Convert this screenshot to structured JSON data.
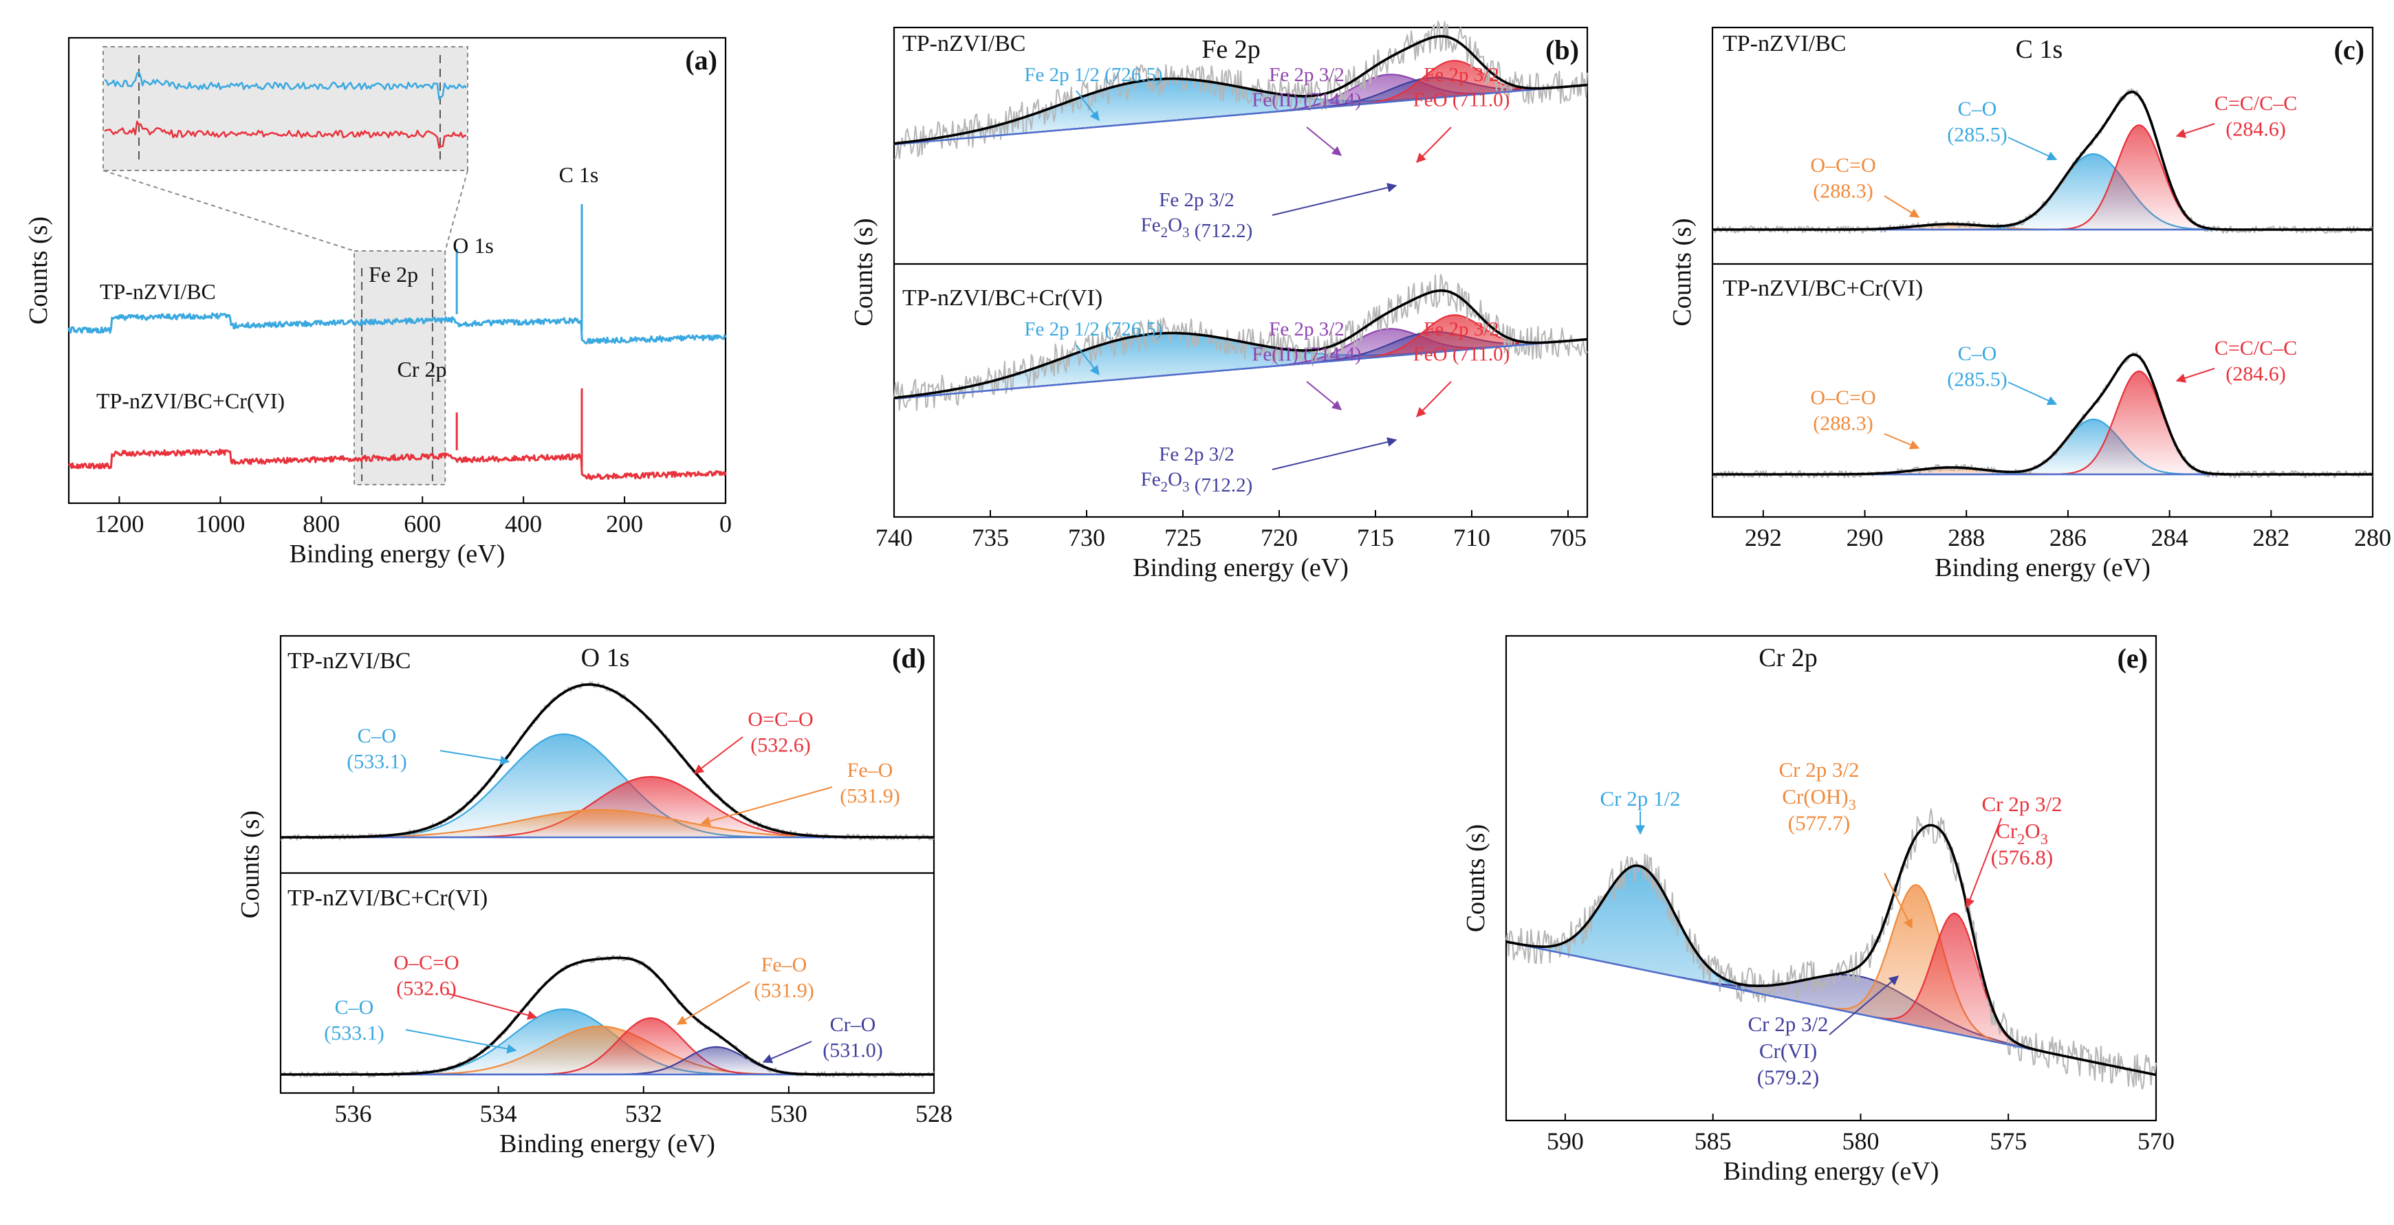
{
  "figure_colors": {
    "blue": "#3aa8e0",
    "red": "#e8323c",
    "orange": "#f08a3c",
    "purple": "#8e44ad",
    "navy": "#3f3f9c",
    "black": "#000000",
    "raw": "#b5b5b5",
    "inset_bg": "#e8e8e8"
  },
  "chart_data": [
    {
      "id": "a",
      "panel_label": "(a)",
      "type": "line",
      "xlabel": "Binding energy (eV)",
      "ylabel": "Counts (s)",
      "xlim": [
        1300,
        0
      ],
      "xticks": [
        1200,
        1000,
        800,
        600,
        400,
        200,
        0
      ],
      "xtick_labels": [
        "1200",
        "1000",
        "800",
        "600",
        "400",
        "200",
        "0"
      ],
      "series": [
        {
          "name": "TP-nZVI/BC",
          "color": "blue",
          "offset": 0.62
        },
        {
          "name": "TP-nZVI/BC+Cr(VI)",
          "color": "red",
          "offset": 0.28
        }
      ],
      "peak_labels": {
        "fe2p": "Fe 2p",
        "cr2p": "Cr 2p",
        "o1s": "O 1s",
        "c1s": "C 1s"
      }
    },
    {
      "id": "b",
      "panel_label": "(b)",
      "type": "line",
      "title": "Fe 2p",
      "xlabel": "Binding energy (eV)",
      "ylabel": "Counts (s)",
      "xlim": [
        740,
        704
      ],
      "xticks": [
        740,
        735,
        730,
        725,
        720,
        715,
        710,
        705
      ],
      "xtick_labels": [
        "740",
        "735",
        "730",
        "725",
        "720",
        "715",
        "710",
        "705"
      ],
      "series": [
        {
          "name": "TP-nZVI/BC",
          "components": [
            {
              "label_lines": [
                "Fe 2p 1/2 (726.5)"
              ],
              "center": 726.5,
              "color": "blue"
            },
            {
              "label_lines": [
                "Fe 2p 3/2",
                "Fe(II) (714.4)"
              ],
              "center": 714.4,
              "color": "purple"
            },
            {
              "label_lines": [
                "Fe 2p 3/2",
                "FeO (711.0)"
              ],
              "center": 711.0,
              "color": "red"
            },
            {
              "label_lines": [
                "Fe 2p 3/2",
                "Fe2O3 (712.2)"
              ],
              "center": 712.2,
              "color": "navy"
            }
          ]
        },
        {
          "name": "TP-nZVI/BC+Cr(VI)",
          "components": [
            {
              "label_lines": [
                "Fe 2p 1/2 (726.5)"
              ],
              "center": 726.5,
              "color": "blue"
            },
            {
              "label_lines": [
                "Fe 2p 3/2",
                "Fe(II) (714.4)"
              ],
              "center": 714.4,
              "color": "purple"
            },
            {
              "label_lines": [
                "Fe 2p 3/2",
                "FeO (711.0)"
              ],
              "center": 711.0,
              "color": "red"
            },
            {
              "label_lines": [
                "Fe 2p 3/2",
                "Fe2O3 (712.2)"
              ],
              "center": 712.2,
              "color": "navy"
            }
          ]
        }
      ]
    },
    {
      "id": "c",
      "panel_label": "(c)",
      "type": "line",
      "title": "C 1s",
      "xlabel": "Binding energy (eV)",
      "ylabel": "Counts (s)",
      "xlim": [
        293,
        280
      ],
      "xticks": [
        292,
        290,
        288,
        286,
        284,
        282,
        280
      ],
      "xtick_labels": [
        "292",
        "290",
        "288",
        "286",
        "284",
        "282",
        "280"
      ],
      "series": [
        {
          "name": "TP-nZVI/BC",
          "components": [
            {
              "label_lines": [
                "O–C=O",
                "(288.3)"
              ],
              "center": 288.3,
              "color": "orange"
            },
            {
              "label_lines": [
                "C–O",
                "(285.5)"
              ],
              "center": 285.5,
              "color": "blue"
            },
            {
              "label_lines": [
                "C=C/C–C",
                "(284.6)"
              ],
              "center": 284.6,
              "color": "red"
            }
          ]
        },
        {
          "name": "TP-nZVI/BC+Cr(VI)",
          "components": [
            {
              "label_lines": [
                "O–C=O",
                "(288.3)"
              ],
              "center": 288.3,
              "color": "orange"
            },
            {
              "label_lines": [
                "C–O",
                "(285.5)"
              ],
              "center": 285.5,
              "color": "blue"
            },
            {
              "label_lines": [
                "C=C/C–C",
                "(284.6)"
              ],
              "center": 284.6,
              "color": "red"
            }
          ]
        }
      ]
    },
    {
      "id": "d",
      "panel_label": "(d)",
      "type": "line",
      "title": "O 1s",
      "xlabel": "Binding energy (eV)",
      "ylabel": "Counts (s)",
      "xlim": [
        537,
        528
      ],
      "xticks": [
        536,
        534,
        532,
        530,
        528
      ],
      "xtick_labels": [
        "536",
        "534",
        "532",
        "530",
        "528"
      ],
      "series": [
        {
          "name": "TP-nZVI/BC",
          "components": [
            {
              "label_lines": [
                "C–O",
                "(533.1)"
              ],
              "center": 533.1,
              "color": "blue"
            },
            {
              "label_lines": [
                "O=C–O",
                "(532.6)"
              ],
              "center": 532.6,
              "color": "red"
            },
            {
              "label_lines": [
                "Fe–O",
                "(531.9)"
              ],
              "center": 531.9,
              "color": "orange"
            }
          ]
        },
        {
          "name": "TP-nZVI/BC+Cr(VI)",
          "components": [
            {
              "label_lines": [
                "O–C=O",
                "(532.6)"
              ],
              "center": 532.6,
              "color": "red"
            },
            {
              "label_lines": [
                "C–O",
                "(533.1)"
              ],
              "center": 533.1,
              "color": "blue"
            },
            {
              "label_lines": [
                "Fe–O",
                "(531.9)"
              ],
              "center": 531.9,
              "color": "orange"
            },
            {
              "label_lines": [
                "Cr–O",
                "(531.0)"
              ],
              "center": 531.0,
              "color": "navy"
            }
          ]
        }
      ]
    },
    {
      "id": "e",
      "panel_label": "(e)",
      "type": "line",
      "title": "Cr 2p",
      "xlabel": "Binding energy (eV)",
      "ylabel": "Counts (s)",
      "xlim": [
        592,
        570
      ],
      "xticks": [
        590,
        585,
        580,
        575,
        570
      ],
      "xtick_labels": [
        "590",
        "585",
        "580",
        "575",
        "570"
      ],
      "components": [
        {
          "label_lines": [
            "Cr 2p 1/2"
          ],
          "center": 587.5,
          "color": "blue"
        },
        {
          "label_lines": [
            "Cr 2p 3/2",
            "Cr(OH)3",
            "(577.7)"
          ],
          "center": 577.7,
          "color": "orange"
        },
        {
          "label_lines": [
            "Cr 2p 3/2",
            "Cr2O3",
            "(576.8)"
          ],
          "center": 576.8,
          "color": "red"
        },
        {
          "label_lines": [
            "Cr 2p 3/2",
            "Cr(VI)",
            "(579.2)"
          ],
          "center": 579.2,
          "color": "navy"
        }
      ]
    }
  ]
}
